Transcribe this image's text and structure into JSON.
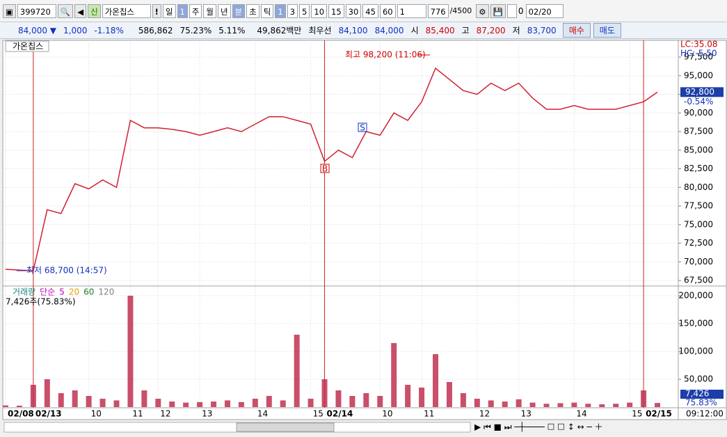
{
  "toolbar": {
    "code": "399720",
    "badge": "신",
    "name": "가온칩스",
    "alert": "!",
    "period": "일",
    "period_n": "1",
    "periods": [
      "주",
      "월",
      "년",
      "분",
      "초",
      "틱"
    ],
    "intervals": [
      "1",
      "3",
      "5",
      "10",
      "15",
      "30",
      "45",
      "60"
    ],
    "count_select": "1",
    "count": "776",
    "count_max": "/4500",
    "check": "0",
    "date": "02/20"
  },
  "quote": {
    "price": "84,000 ▼",
    "change": "1,000",
    "rate": "-1.18%",
    "volume": "586,862",
    "vol_rate": "75.23%",
    "turnover": "5.11%",
    "amount": "49,862백만",
    "best_label": "최우선",
    "ask": "84,100",
    "bid": "84,000",
    "open_label": "시",
    "open": "85,400",
    "high_label": "고",
    "high": "87,200",
    "low_label": "저",
    "low": "83,700",
    "buy": "매수",
    "sell": "매도"
  },
  "chart_data": [
    {
      "type": "line",
      "title": "가온칩스",
      "color": "#d02030",
      "grid": true,
      "values": [
        69000,
        68900,
        68800,
        77000,
        76500,
        80500,
        79800,
        81000,
        80000,
        89000,
        88000,
        88000,
        87800,
        87500,
        87000,
        87500,
        88000,
        87500,
        88500,
        89500,
        89500,
        89000,
        88500,
        83500,
        85000,
        84000,
        87500,
        87000,
        90000,
        89000,
        91500,
        96000,
        94500,
        93000,
        92500,
        94000,
        93000,
        94000,
        92000,
        90500,
        90500,
        91000,
        90500,
        90500,
        90500,
        91000,
        91500,
        92800
      ],
      "ylim": [
        66850,
        99750
      ],
      "yticks": [
        {
          "value": 67500,
          "label": "67,500"
        },
        {
          "value": 70000,
          "label": "70,000"
        },
        {
          "value": 72500,
          "label": "72,500"
        },
        {
          "value": 75000,
          "label": "75,000"
        },
        {
          "value": 77500,
          "label": "77,500"
        },
        {
          "value": 80000,
          "label": "80,000"
        },
        {
          "value": 82500,
          "label": "82,500"
        },
        {
          "value": 85000,
          "label": "85,000"
        },
        {
          "value": 87500,
          "label": "87,500"
        },
        {
          "value": 90000,
          "label": "90,000"
        },
        {
          "value": 92500,
          "label": "92,500"
        },
        {
          "value": 95000,
          "label": "95,000"
        },
        {
          "value": 97500,
          "label": "97,500"
        }
      ],
      "annotations": {
        "lc": "LC:35.08",
        "hc": "HC:-5.50",
        "high": "최고 98,200 (11:06)",
        "low": "최저 68,700 (14:57)",
        "buy": "B",
        "sell": "S"
      },
      "last_price": {
        "value": 92800,
        "label": "92,800"
      },
      "last_change": "-0.54%"
    },
    {
      "type": "bar",
      "title": "거래량",
      "color": "#c03050",
      "grid": true,
      "ma_label": "단순",
      "ma_periods": [
        {
          "name": "5",
          "color": "#c000c0"
        },
        {
          "name": "20",
          "color": "#e0a000"
        },
        {
          "name": "60",
          "color": "#208020"
        },
        {
          "name": "120",
          "color": "#808080"
        }
      ],
      "info": "7,426주(75.83%)",
      "categories": [
        "02/08",
        null,
        "02/13",
        null,
        null,
        null,
        "10",
        null,
        null,
        "11",
        null,
        "12",
        null,
        null,
        "13",
        null,
        null,
        null,
        "14",
        null,
        null,
        null,
        "15",
        "02/14",
        null,
        null,
        null,
        "10",
        null,
        null,
        "11",
        null,
        null,
        null,
        "12",
        null,
        null,
        "13",
        null,
        null,
        null,
        "14",
        null,
        null,
        null,
        "15",
        "02/15",
        null
      ],
      "values": [
        3000,
        2500,
        40000,
        50000,
        25000,
        30000,
        20000,
        15000,
        12000,
        200000,
        30000,
        15000,
        10000,
        8000,
        9000,
        10000,
        12000,
        9000,
        15000,
        20000,
        12000,
        130000,
        15000,
        50000,
        30000,
        20000,
        25000,
        20000,
        115000,
        40000,
        35000,
        95000,
        45000,
        25000,
        15000,
        12000,
        10000,
        14000,
        8000,
        6000,
        7000,
        8000,
        6000,
        5000,
        6000,
        8000,
        30000,
        7426
      ],
      "value_labels": [
        null,
        null,
        null,
        null,
        null,
        null,
        null,
        null,
        null,
        null,
        null,
        null,
        null,
        null,
        null,
        null,
        null,
        null,
        null,
        null,
        null,
        null,
        null,
        null,
        null,
        null,
        null,
        null,
        null,
        null,
        null,
        null,
        null,
        null,
        null,
        null,
        null,
        null,
        null,
        null,
        null,
        null,
        null,
        null,
        null,
        null,
        null,
        "7,426"
      ],
      "last_rate": "75.83%",
      "ylim": [
        0,
        216250
      ],
      "yticks": [
        {
          "value": 50000,
          "label": "50,000"
        },
        {
          "value": 100000,
          "label": "100,000"
        },
        {
          "value": 150000,
          "label": "150,000"
        },
        {
          "value": 200000,
          "label": "200,000"
        }
      ],
      "time": "09:12:00"
    }
  ]
}
